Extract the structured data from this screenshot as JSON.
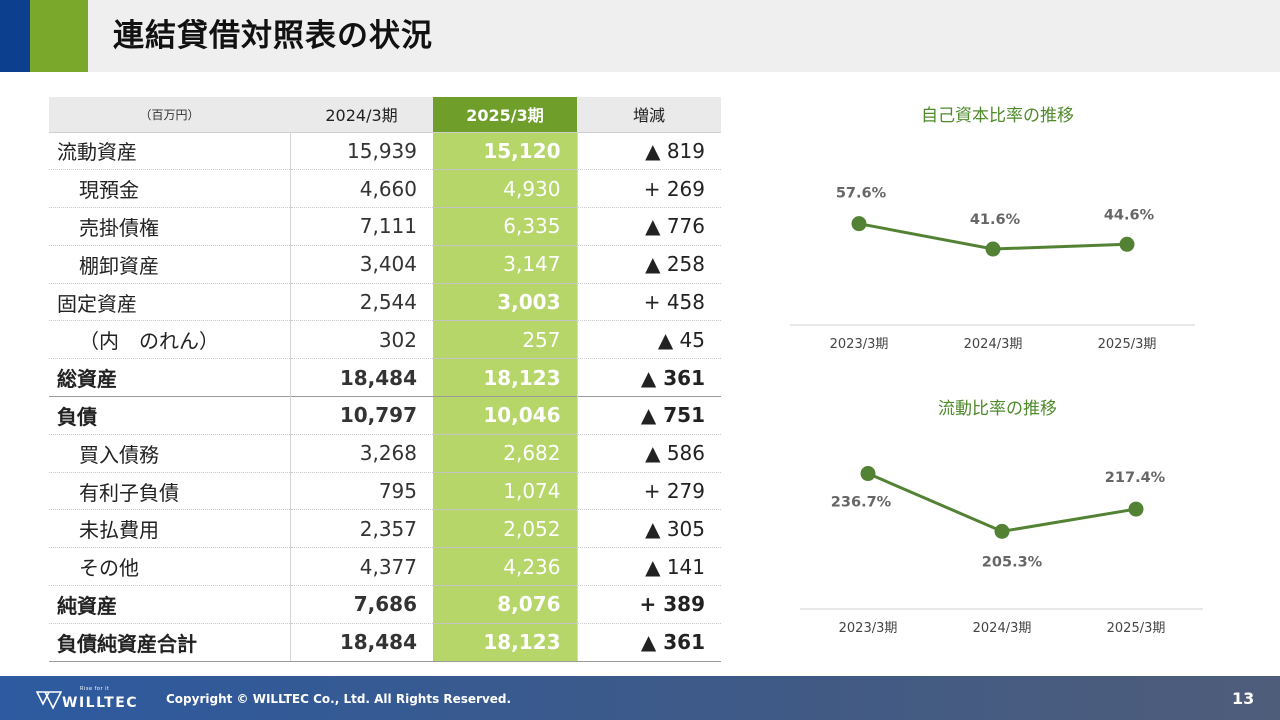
{
  "header": {
    "title": "連結貸借対照表の状況"
  },
  "table": {
    "columns": [
      "（百万円）",
      "2024/3期",
      "2025/3期",
      "増減"
    ],
    "rows": [
      {
        "label": "流動資産",
        "prev": "15,939",
        "curr": "15,120",
        "diff": "▲ 819",
        "indent": false,
        "bold": false,
        "curr_bold": true
      },
      {
        "label": "現預金",
        "prev": "4,660",
        "curr": "4,930",
        "diff": "+ 269",
        "indent": true,
        "bold": false,
        "curr_bold": false
      },
      {
        "label": "売掛債権",
        "prev": "7,111",
        "curr": "6,335",
        "diff": "▲ 776",
        "indent": true,
        "bold": false,
        "curr_bold": false
      },
      {
        "label": "棚卸資産",
        "prev": "3,404",
        "curr": "3,147",
        "diff": "▲ 258",
        "indent": true,
        "bold": false,
        "curr_bold": false
      },
      {
        "label": "固定資産",
        "prev": "2,544",
        "curr": "3,003",
        "diff": "+ 458",
        "indent": false,
        "bold": false,
        "curr_bold": true
      },
      {
        "label": "（内　のれん）",
        "prev": "302",
        "curr": "257",
        "diff": "▲ 45",
        "indent": true,
        "bold": false,
        "curr_bold": false
      },
      {
        "label": "総資産",
        "prev": "18,484",
        "curr": "18,123",
        "diff": "▲ 361",
        "indent": false,
        "bold": true,
        "curr_bold": true
      },
      {
        "label": "負債",
        "prev": "10,797",
        "curr": "10,046",
        "diff": "▲ 751",
        "indent": false,
        "bold": true,
        "curr_bold": true,
        "topline": true
      },
      {
        "label": "買入債務",
        "prev": "3,268",
        "curr": "2,682",
        "diff": "▲ 586",
        "indent": true,
        "bold": false,
        "curr_bold": false
      },
      {
        "label": "有利子負債",
        "prev": "795",
        "curr": "1,074",
        "diff": "+ 279",
        "indent": true,
        "bold": false,
        "curr_bold": false
      },
      {
        "label": "未払費用",
        "prev": "2,357",
        "curr": "2,052",
        "diff": "▲ 305",
        "indent": true,
        "bold": false,
        "curr_bold": false
      },
      {
        "label": "その他",
        "prev": "4,377",
        "curr": "4,236",
        "diff": "▲ 141",
        "indent": true,
        "bold": false,
        "curr_bold": false
      },
      {
        "label": "純資産",
        "prev": "7,686",
        "curr": "8,076",
        "diff": "+ 389",
        "indent": false,
        "bold": true,
        "curr_bold": true
      },
      {
        "label": "負債純資産合計",
        "prev": "18,484",
        "curr": "18,123",
        "diff": "▲ 361",
        "indent": false,
        "bold": true,
        "curr_bold": true
      }
    ]
  },
  "chart_data": [
    {
      "type": "line",
      "title": "自己資本比率の推移",
      "categories": [
        "2023/3期",
        "2024/3期",
        "2025/3期"
      ],
      "values": [
        57.6,
        41.6,
        44.6
      ],
      "labels": [
        "57.6%",
        "41.6%",
        "44.6%"
      ],
      "ylim": [
        0,
        70
      ],
      "color": "#548235"
    },
    {
      "type": "line",
      "title": "流動比率の推移",
      "categories": [
        "2023/3期",
        "2024/3期",
        "2025/3期"
      ],
      "values": [
        236.7,
        205.3,
        217.4
      ],
      "labels": [
        "236.7%",
        "205.3%",
        "217.4%"
      ],
      "ylim": [
        180,
        250
      ],
      "color": "#548235"
    }
  ],
  "footer": {
    "logo_tagline": "Rise for it",
    "logo_name": "WILLTEC",
    "copyright": "Copyright © WILLTEC Co., Ltd. All Rights Reserved.",
    "page_number": "13"
  },
  "colors": {
    "accent_green": "#6f9f2a",
    "highlight_green": "#b6d66a",
    "line_green": "#548235",
    "navy": "#0d3f8f"
  }
}
